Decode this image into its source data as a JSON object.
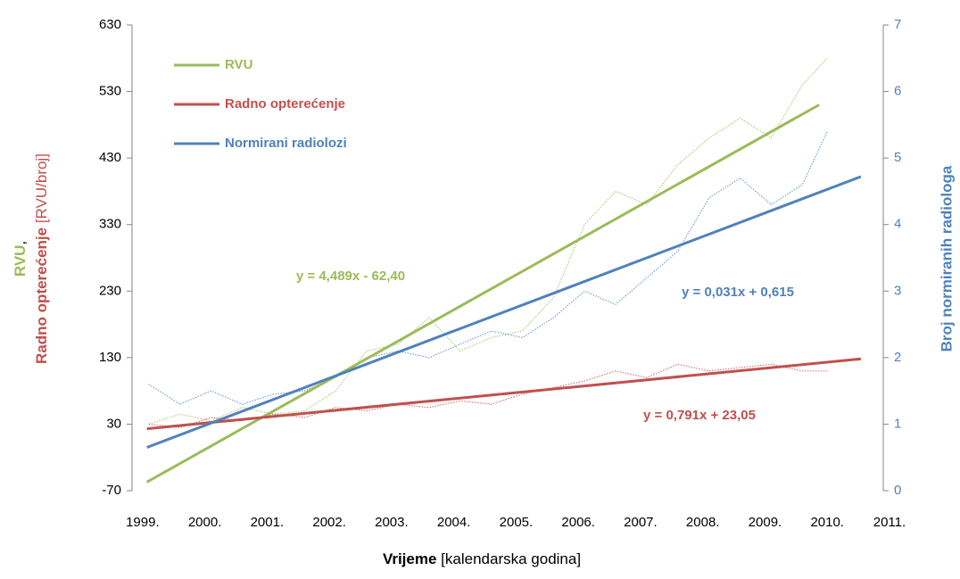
{
  "chart_data": {
    "type": "line",
    "xlabel": {
      "bold": "Vrijeme",
      "rest": "[kalendarska godina]"
    },
    "ylabel": {
      "part1": "RVU",
      "part1b": ",",
      "part2": "Radno opterećenje",
      "part3": "[RVU/broj]"
    },
    "y2label": "Broj normiranih radiologa",
    "xlim": [
      1998.83,
      2010.9
    ],
    "xticks": [
      {
        "value": 1999,
        "label": "1999."
      },
      {
        "value": 2000,
        "label": "2000."
      },
      {
        "value": 2001,
        "label": "2001."
      },
      {
        "value": 2002,
        "label": "2002."
      },
      {
        "value": 2003,
        "label": "2003."
      },
      {
        "value": 2004,
        "label": "2004."
      },
      {
        "value": 2005,
        "label": "2005."
      },
      {
        "value": 2006,
        "label": "2006."
      },
      {
        "value": 2007,
        "label": "2007."
      },
      {
        "value": 2008,
        "label": "2008."
      },
      {
        "value": 2009,
        "label": "2009."
      },
      {
        "value": 2010,
        "label": "2010."
      },
      {
        "value": 2011,
        "label": "2011."
      }
    ],
    "ylim": [
      -70,
      630
    ],
    "yticks": [
      -70,
      30,
      130,
      230,
      330,
      430,
      530,
      630
    ],
    "y2lim": [
      0,
      7
    ],
    "y2ticks": [
      0,
      1,
      2,
      3,
      4,
      5,
      6,
      7
    ],
    "grid": false,
    "legend": "upper left",
    "series": [
      {
        "color": "#9bbb59",
        "style": "dotted",
        "axis": "y",
        "x": [
          1999.1,
          1999.6,
          2000.1,
          2000.6,
          2001.1,
          2001.6,
          2002.1,
          2002.6,
          2003.1,
          2003.6,
          2004.1,
          2004.6,
          2005.1,
          2005.6,
          2006.1,
          2006.6,
          2007.1,
          2007.6,
          2008.1,
          2008.6,
          2009.1,
          2009.6,
          2010.0
        ],
        "values": [
          30,
          45,
          35,
          55,
          45,
          50,
          80,
          140,
          150,
          190,
          140,
          160,
          170,
          220,
          330,
          380,
          360,
          420,
          460,
          490,
          460,
          540,
          580
        ]
      },
      {
        "color": "#c0504d",
        "style": "dotted",
        "axis": "y",
        "x": [
          1999.1,
          1999.6,
          2000.1,
          2000.6,
          2001.1,
          2001.6,
          2002.1,
          2002.6,
          2003.1,
          2003.6,
          2004.1,
          2004.6,
          2005.1,
          2005.6,
          2006.1,
          2006.6,
          2007.1,
          2007.6,
          2008.1,
          2008.6,
          2009.1,
          2009.6,
          2010.0
        ],
        "values": [
          30,
          25,
          40,
          35,
          45,
          40,
          55,
          50,
          60,
          55,
          65,
          60,
          75,
          85,
          95,
          110,
          100,
          120,
          110,
          115,
          120,
          110,
          110
        ]
      },
      {
        "color": "#4f81bd",
        "style": "dotted",
        "axis": "y2",
        "x": [
          1999.1,
          1999.6,
          2000.1,
          2000.6,
          2001.1,
          2001.6,
          2002.1,
          2002.6,
          2003.1,
          2003.6,
          2004.1,
          2004.6,
          2005.1,
          2005.6,
          2006.1,
          2006.6,
          2007.1,
          2007.6,
          2008.1,
          2008.6,
          2009.1,
          2009.6,
          2010.0
        ],
        "values": [
          1.6,
          1.3,
          1.5,
          1.3,
          1.45,
          1.5,
          1.7,
          2.0,
          2.1,
          2.0,
          2.2,
          2.4,
          2.3,
          2.6,
          3.0,
          2.8,
          3.2,
          3.6,
          4.4,
          4.7,
          4.3,
          4.6,
          5.4
        ]
      },
      {
        "name": "RVU",
        "color": "#9bbb59",
        "style": "trend",
        "axis": "y",
        "x": [
          1999.07,
          2009.87
        ],
        "values": [
          -57,
          510
        ]
      },
      {
        "name": "Radno opterećenje",
        "color": "#c0504d",
        "style": "trend",
        "axis": "y",
        "x": [
          1999.07,
          2010.54
        ],
        "values": [
          23,
          128
        ]
      },
      {
        "name": "Normirani radiolozi",
        "color": "#4f81bd",
        "style": "trend",
        "axis": "y2",
        "x": [
          1999.07,
          2010.54
        ],
        "values": [
          0.65,
          4.72
        ]
      }
    ],
    "annotations": [
      {
        "text": "y = 4,489x - 62,40",
        "color": "#9bbb59"
      },
      {
        "text": "y = 0,031x + 0,615",
        "color": "#4f81bd"
      },
      {
        "text": "y = 0,791x + 23,05",
        "color": "#c0504d"
      }
    ]
  }
}
